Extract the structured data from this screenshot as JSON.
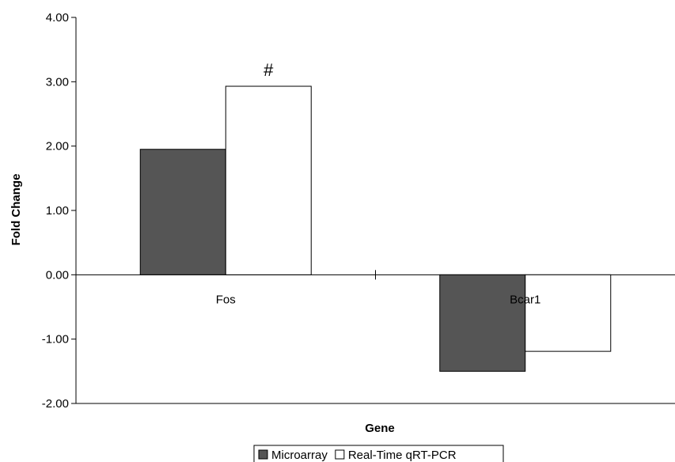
{
  "chart_data": {
    "type": "bar",
    "categories": [
      "Fos",
      "Bcar1"
    ],
    "series": [
      {
        "name": "Microarray",
        "values": [
          1.95,
          -1.5
        ],
        "color": "#555555"
      },
      {
        "name": "Real-Time qRT-PCR",
        "values": [
          2.93,
          -1.19
        ],
        "color": "#ffffff"
      }
    ],
    "xlabel": "Gene",
    "ylabel": "Fold Change",
    "ylim": [
      -2,
      4
    ],
    "yticks": [
      "-2.00",
      "-1.00",
      "0.00",
      "1.00",
      "2.00",
      "3.00",
      "4.00"
    ],
    "annotations": [
      {
        "category": "Fos",
        "series": "Real-Time qRT-PCR",
        "text": "#"
      }
    ],
    "legend_position": "bottom",
    "grid": false
  }
}
